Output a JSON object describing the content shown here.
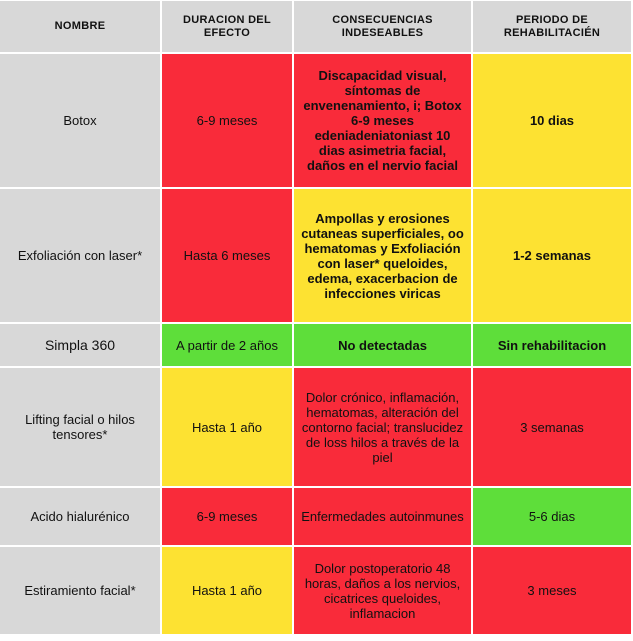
{
  "colors": {
    "red": "#f92b3a",
    "yellow": "#fde232",
    "green": "#5ede3a",
    "gray": "#d8d8d8"
  },
  "headers": {
    "nombre": "NOMBRE",
    "duracion": "DURACION DEL EFECTO",
    "consecuencias": "CONSECUENCIAS INDESEABLES",
    "periodo": "PERIODO DE REHABILITACIÉN"
  },
  "rows": [
    {
      "nombre": "Botox",
      "duracion": "6-9 meses",
      "consecuencias": "Discapacidad visual, síntomas de envenenamiento, i; Botox 6-9 meses edeniadeniatoniast 10 dias asimetria facial, daños en el nervio facial",
      "periodo": "10 dias"
    },
    {
      "nombre": "Exfoliación con laser*",
      "duracion": "Hasta 6 meses",
      "consecuencias": "Ampollas y erosiones cutaneas superficiales, oo hematomas y Exfoliación con laser* queloides, edema, exacerbacion de infecciones viricas",
      "periodo": "1-2 semanas"
    },
    {
      "nombre": "Simpla 360",
      "duracion": "A partir de 2 años",
      "consecuencias": "No detectadas",
      "periodo": "Sin rehabilitacion"
    },
    {
      "nombre": "Lifting facial o hilos tensores*",
      "duracion": "Hasta 1 año",
      "consecuencias": "Dolor crónico, inflamación, hematomas, alteración del contorno facial; translucidez de loss hilos a través de la piel",
      "periodo": "3 semanas"
    },
    {
      "nombre": "Acido hialurénico",
      "duracion": "6-9 meses",
      "consecuencias": "Enfermedades autoinmunes",
      "periodo": "5-6 dias"
    },
    {
      "nombre": "Estiramiento facial*",
      "duracion": "Hasta 1 año",
      "consecuencias": "Dolor postoperatorio 48 horas, daños a los nervios, cicatrices queloides, inflamacion",
      "periodo": "3 meses"
    }
  ]
}
